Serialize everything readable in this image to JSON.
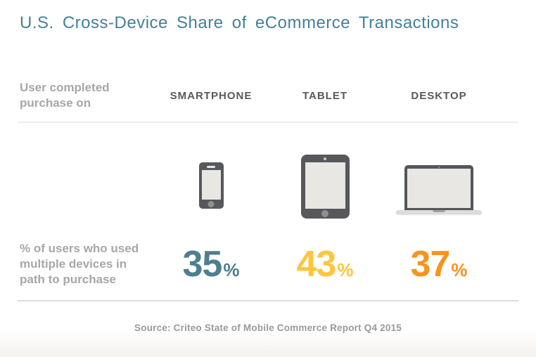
{
  "title": "U.S. Cross-Device Share of eCommerce Transactions",
  "header": {
    "row_label": "User completed purchase on"
  },
  "metric_label": "% of users who used multiple devices in path to purchase",
  "source": "Source: Criteo State of Mobile Commerce Report Q4 2015",
  "columns": [
    {
      "device": "SMARTPHONE",
      "icon": "smartphone-icon",
      "value": "35",
      "unit": "%",
      "value_color": "#4d7f90"
    },
    {
      "device": "TABLET",
      "icon": "tablet-icon",
      "value": "43",
      "unit": "%",
      "value_color": "#fdc63c"
    },
    {
      "device": "DESKTOP",
      "icon": "laptop-icon",
      "value": "37",
      "unit": "%",
      "value_color": "#f7941e"
    }
  ],
  "colors": {
    "title_text": "#44809a",
    "device_header_text": "#58595b",
    "label_text": "#a6a7a9",
    "source_text": "#9a9a9a",
    "icon_body": "#57585c",
    "icon_screen": "#e8e7e4"
  },
  "chart_data": {
    "type": "table",
    "title": "U.S. Cross-Device Share of eCommerce Transactions",
    "row_label": "User completed purchase on",
    "categories": [
      "SMARTPHONE",
      "TABLET",
      "DESKTOP"
    ],
    "series": [
      {
        "name": "% of users who used multiple devices in path to purchase",
        "values": [
          35,
          43,
          37
        ]
      }
    ],
    "unit": "%",
    "source": "Source: Criteo State of Mobile Commerce Report Q4 2015",
    "value_colors": [
      "#4d7f90",
      "#fdc63c",
      "#f7941e"
    ]
  }
}
